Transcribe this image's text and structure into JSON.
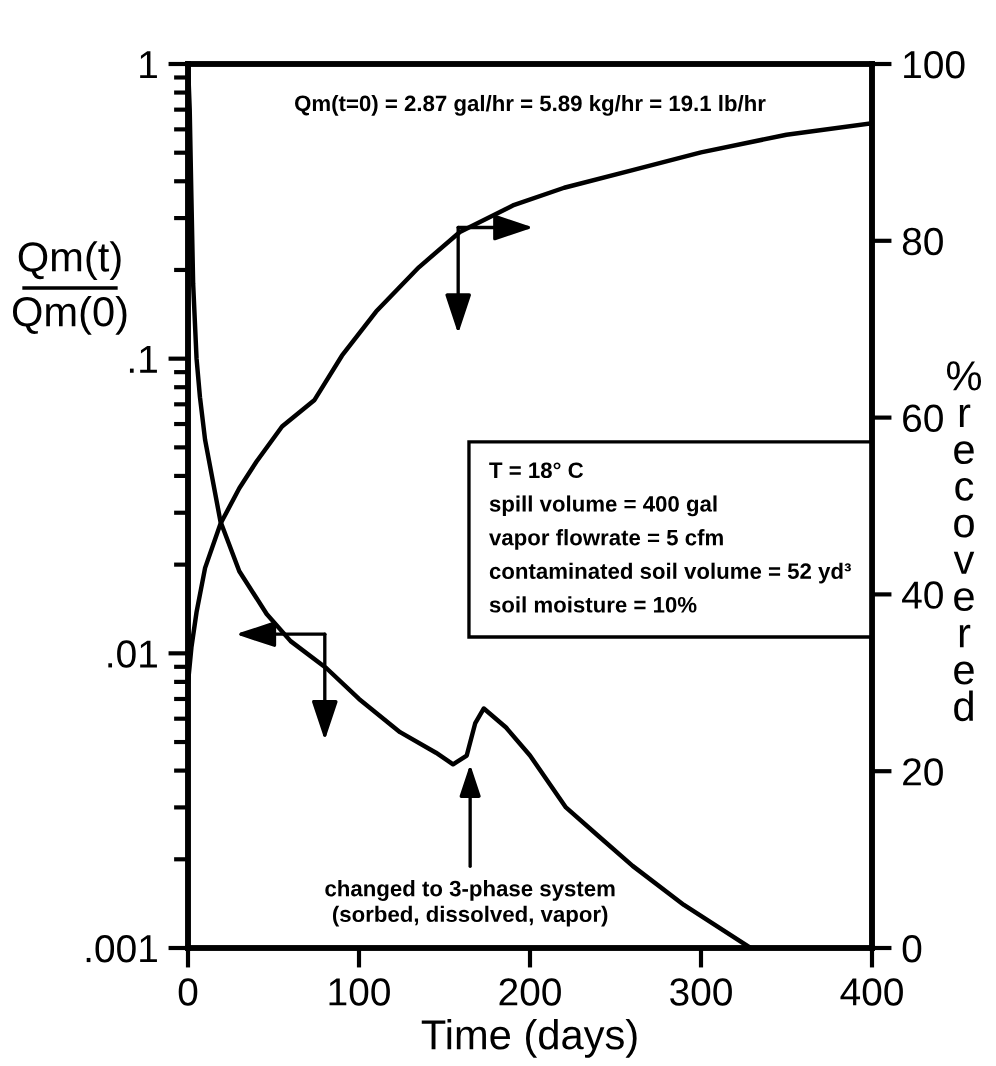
{
  "chart_data": {
    "type": "line",
    "xlabel": "Time (days)",
    "ylabel": "Qm(t)\nQm(0)",
    "y2label": "% recovered",
    "xlim": [
      0,
      400
    ],
    "xticks": [
      0,
      100,
      200,
      300,
      400
    ],
    "ylim": [
      0.001,
      1
    ],
    "yticks": [
      {
        "value": 1,
        "label": "1"
      },
      {
        "value": 0.1,
        "label": ".1"
      },
      {
        "value": 0.01,
        "label": ".01"
      },
      {
        "value": 0.001,
        "label": ".001"
      }
    ],
    "y2lim": [
      0,
      100
    ],
    "y2ticks": [
      0,
      20,
      40,
      60,
      80,
      100
    ],
    "log": "y",
    "grid": false,
    "legend": false,
    "marker": "none",
    "line_style": "solid",
    "series": [
      {
        "color": "#000000",
        "x": [
          0,
          1,
          2,
          3,
          5,
          7,
          10,
          19,
          30,
          46,
          60,
          81,
          100,
          124,
          145,
          155,
          163,
          168,
          173,
          186,
          200,
          221,
          240,
          260,
          290,
          329
        ],
        "values": [
          1,
          0.7,
          0.35,
          0.18,
          0.1,
          0.074,
          0.053,
          0.028,
          0.019,
          0.0136,
          0.011,
          0.0089,
          0.007,
          0.0054,
          0.0046,
          0.0042,
          0.0045,
          0.0058,
          0.0065,
          0.0056,
          0.0045,
          0.003,
          0.0024,
          0.0019,
          0.0014,
          0.001
        ]
      },
      {
        "color": "#000000",
        "axis": "y2",
        "x": [
          0,
          2,
          5,
          10,
          19,
          30,
          40,
          55,
          74,
          90,
          110,
          135,
          159,
          190,
          220,
          260,
          300,
          350,
          400
        ],
        "values": [
          30,
          34,
          38,
          43,
          48,
          52,
          55,
          59,
          62,
          67,
          72,
          77,
          81,
          84,
          86,
          88,
          90,
          92,
          93.3
        ]
      }
    ],
    "annotations": [
      "Qm(t=0) = 2.87 gal/hr = 5.89 kg/hr = 19.1 lb/hr",
      "T = 18° C\nspill volume = 400 gal\nvapor flowrate = 5 cfm\ncontaminated soil volume = 52 yd³\nsoil moisture = 10%",
      {
        "text": "changed to 3-phase system\n(sorbed, dissolved, vapor)",
        "x": 165,
        "y": 0.0042
      }
    ]
  }
}
